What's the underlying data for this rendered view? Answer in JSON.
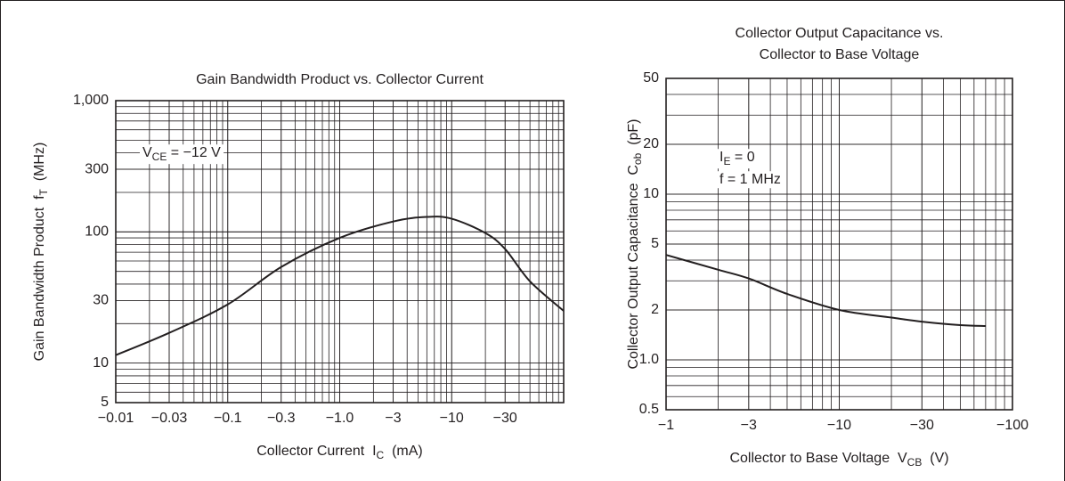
{
  "chart_data": [
    {
      "type": "line",
      "title": [
        "Gain Bandwidth Product vs. Collector Current"
      ],
      "xlabel": [
        "Collector Current  I",
        "C",
        "  (mA)"
      ],
      "ylabel": [
        "Gain Bandwidth Product  f",
        "T",
        "  (MHz)"
      ],
      "annotations": [
        [
          "V",
          "CE",
          " = −12 V"
        ]
      ],
      "x": [
        -0.01,
        -0.03,
        -0.1,
        -0.3,
        -1.0,
        -3,
        -6,
        -10,
        -20,
        -30,
        -50,
        -100
      ],
      "series": [
        {
          "color": "#231f20",
          "values": [
            11.5,
            17,
            28,
            54,
            90,
            120,
            130,
            126,
            98,
            74,
            42,
            25
          ]
        }
      ],
      "xscale": "log",
      "yscale": "log",
      "grid": true,
      "minor_grid": true,
      "xlim": [
        -0.01,
        -100
      ],
      "xticks": [
        {
          "value": -0.01,
          "label": "−0.01"
        },
        {
          "value": -0.03,
          "label": "−0.03"
        },
        {
          "value": -0.1,
          "label": "−0.1"
        },
        {
          "value": -0.3,
          "label": "−0.3"
        },
        {
          "value": -1.0,
          "label": "−1.0"
        },
        {
          "value": -3,
          "label": "−3"
        },
        {
          "value": -10,
          "label": "−10"
        },
        {
          "value": -30,
          "label": "−30"
        }
      ],
      "ylim": [
        5,
        1000
      ],
      "yticks": [
        5,
        10,
        30,
        100,
        300,
        {
          "value": 1000,
          "label": "1,000"
        }
      ]
    },
    {
      "type": "line",
      "title": [
        "Collector Output Capacitance vs.",
        "Collector to Base Voltage"
      ],
      "xlabel": [
        "Collector to Base Voltage  V",
        "CB",
        "  (V)"
      ],
      "ylabel": [
        "Collector Output Capacitance  C",
        "ob",
        "  (pF)"
      ],
      "annotations": [
        [
          "I",
          "E",
          " = 0"
        ],
        [
          "f = 1 MHz"
        ]
      ],
      "x": [
        -1,
        -2,
        -3,
        -5,
        -10,
        -20,
        -30,
        -50,
        -70
      ],
      "series": [
        {
          "color": "#231f20",
          "values": [
            4.3,
            3.5,
            3.1,
            2.5,
            2.0,
            1.8,
            1.7,
            1.62,
            1.6
          ]
        }
      ],
      "xscale": "log",
      "yscale": "log",
      "grid": true,
      "minor_grid": true,
      "xlim": [
        -1,
        -100
      ],
      "xticks": [
        {
          "value": -1,
          "label": "−1"
        },
        {
          "value": -3,
          "label": "−3"
        },
        {
          "value": -10,
          "label": "−10"
        },
        {
          "value": -30,
          "label": "−30"
        },
        {
          "value": -100,
          "label": "−100"
        }
      ],
      "ylim": [
        0.5,
        50
      ],
      "yticks": [
        0.5,
        {
          "value": 1,
          "label": "1.0"
        },
        2,
        5,
        10,
        20,
        50
      ]
    }
  ]
}
